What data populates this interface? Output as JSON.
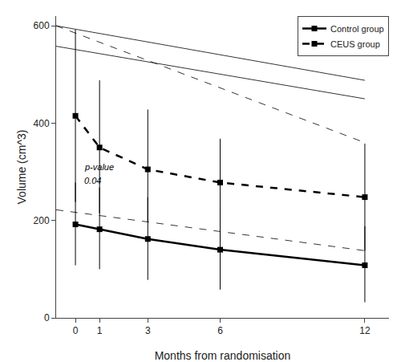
{
  "chart_data": {
    "type": "line",
    "x": [
      0,
      1,
      3,
      6,
      12
    ],
    "color": "black",
    "series": [
      {
        "name": "Control group",
        "values": [
          192,
          182,
          162,
          140,
          108
        ],
        "ci_low": [
          108,
          100,
          78,
          58,
          32
        ],
        "ci_high": [
          278,
          268,
          248,
          228,
          188
        ],
        "line_style": "solid",
        "marker": "square"
      },
      {
        "name": "CEUS group",
        "values": [
          415,
          350,
          305,
          278,
          248
        ],
        "ci_low": [
          238,
          215,
          198,
          158,
          138
        ],
        "ci_high": [
          592,
          488,
          428,
          368,
          358
        ],
        "line_style": "dashed",
        "marker": "square"
      }
    ],
    "reference_lines": [
      {
        "x": [
          -0.8,
          12
        ],
        "values": [
          600,
          488
        ],
        "line_style": "solid"
      },
      {
        "x": [
          -0.8,
          12
        ],
        "values": [
          558,
          450
        ],
        "line_style": "solid"
      },
      {
        "x": [
          -0.8,
          12
        ],
        "values": [
          600,
          360
        ],
        "line_style": "dashed"
      },
      {
        "x": [
          -0.8,
          12
        ],
        "values": [
          222,
          138
        ],
        "line_style": "dashed"
      }
    ],
    "annotations": [
      {
        "text": "p-value",
        "x": 0.3,
        "y": 310
      },
      {
        "text": "0.04",
        "x": 0.3,
        "y": 282
      }
    ],
    "xlabel": "Months from randomisation",
    "ylabel": "Volume (cm^3)",
    "xlim": [
      -0.8,
      13
    ],
    "xticks": [
      0,
      1,
      3,
      6,
      12
    ],
    "ylim": [
      0,
      620
    ],
    "yticks": [
      0,
      200,
      400,
      600
    ],
    "grid": false,
    "legend": "upper right"
  }
}
